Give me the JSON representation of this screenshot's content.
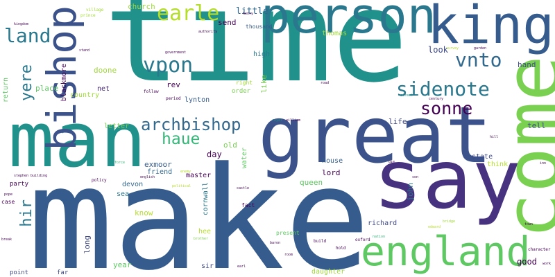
{
  "words": [
    {
      "text": "time",
      "color": "#21918c"
    },
    {
      "text": "make",
      "color": "#365c8d"
    },
    {
      "text": "great",
      "color": "#3b528b"
    },
    {
      "text": "man",
      "color": "#21918c"
    },
    {
      "text": "say",
      "color": "#46327e"
    },
    {
      "text": "come",
      "color": "#7ad151"
    },
    {
      "text": "person",
      "color": "#2a788e"
    },
    {
      "text": "king",
      "color": "#365c8d"
    },
    {
      "text": "bishop",
      "color": "#3b528b"
    },
    {
      "text": "england",
      "color": "#5ec962"
    },
    {
      "text": "earle",
      "color": "#b5de2b"
    },
    {
      "text": "land",
      "color": "#2a788e"
    },
    {
      "text": "vpon",
      "color": "#2a788e"
    },
    {
      "text": "vnto",
      "color": "#31688e"
    },
    {
      "text": "sidenote",
      "color": "#2a788e"
    },
    {
      "text": "sonne",
      "color": "#440154"
    },
    {
      "text": "archbishop",
      "color": "#31688e"
    },
    {
      "text": "haue",
      "color": "#35b779"
    },
    {
      "text": "y\u0003ere",
      "color": "#2a788e"
    },
    {
      "text": "hir",
      "color": "#2a788e"
    },
    {
      "text": "little",
      "color": "#31688e"
    },
    {
      "text": "send",
      "color": "#440154"
    },
    {
      "text": "thousand",
      "color": "#365c8d"
    },
    {
      "text": "church",
      "color": "#a0da39"
    },
    {
      "text": "thomas",
      "color": "#a0da39"
    },
    {
      "text": "high",
      "color": "#2a788e"
    },
    {
      "text": "look",
      "color": "#3e4989"
    },
    {
      "text": "hand",
      "color": "#3e4989"
    },
    {
      "text": "doone",
      "color": "#a0da39"
    },
    {
      "text": "rev",
      "color": "#440154"
    },
    {
      "text": "net",
      "color": "#482878"
    },
    {
      "text": "place",
      "color": "#5ec962"
    },
    {
      "text": "country",
      "color": "#a0da39"
    },
    {
      "text": "blackmore",
      "color": "#440154"
    },
    {
      "text": "return",
      "color": "#5ec962"
    },
    {
      "text": "lynton",
      "color": "#365c8d"
    },
    {
      "text": "like",
      "color": "#7ad151"
    },
    {
      "text": "right",
      "color": "#a0da39"
    },
    {
      "text": "order",
      "color": "#7ad151"
    },
    {
      "text": "life",
      "color": "#3e4989"
    },
    {
      "text": "tell",
      "color": "#3e4989"
    },
    {
      "text": "letter",
      "color": "#7ad151"
    },
    {
      "text": "old",
      "color": "#7ad151"
    },
    {
      "text": "day",
      "color": "#440154"
    },
    {
      "text": "master",
      "color": "#440154"
    },
    {
      "text": "exmoor",
      "color": "#365c8d"
    },
    {
      "text": "friend",
      "color": "#31688e"
    },
    {
      "text": "water",
      "color": "#5ec962"
    },
    {
      "text": "house",
      "color": "#355f8d"
    },
    {
      "text": "lord",
      "color": "#440154"
    },
    {
      "text": "state",
      "color": "#3e4989"
    },
    {
      "text": "think",
      "color": "#b5de2b"
    },
    {
      "text": "queen",
      "color": "#5ec962"
    },
    {
      "text": "devon",
      "color": "#31688e"
    },
    {
      "text": "sea",
      "color": "#2a788e"
    },
    {
      "text": "know",
      "color": "#b5de2b"
    },
    {
      "text": "party",
      "color": "#440154"
    },
    {
      "text": "case",
      "color": "#440154"
    },
    {
      "text": "fact",
      "color": "#440154"
    },
    {
      "text": "cornwall",
      "color": "#2a788e"
    },
    {
      "text": "john",
      "color": "#2a788e"
    },
    {
      "text": "richard",
      "color": "#3e4989"
    },
    {
      "text": "hee",
      "color": "#b5de2b"
    },
    {
      "text": "long",
      "color": "#3e4989"
    },
    {
      "text": "year",
      "color": "#5ec962"
    },
    {
      "text": "sir",
      "color": "#3e4989"
    },
    {
      "text": "present",
      "color": "#5ec962"
    },
    {
      "text": "daughter",
      "color": "#a0da39"
    },
    {
      "text": "good",
      "color": "#440154"
    },
    {
      "text": "point",
      "color": "#3e4989"
    },
    {
      "text": "far",
      "color": "#3e4989"
    },
    {
      "text": "prince",
      "color": "#a0da39"
    },
    {
      "text": "village",
      "color": "#a0da39"
    },
    {
      "text": "kingdom",
      "color": "#440154"
    },
    {
      "text": "henry",
      "color": "#440154"
    },
    {
      "text": "authority",
      "color": "#440154"
    },
    {
      "text": "government",
      "color": "#440154"
    },
    {
      "text": "stand",
      "color": "#440154"
    },
    {
      "text": "follow",
      "color": "#440154"
    },
    {
      "text": "period",
      "color": "#440154"
    },
    {
      "text": "garden",
      "color": "#440154"
    },
    {
      "text": "survey",
      "color": "#b5de2b"
    },
    {
      "text": "road",
      "color": "#440154"
    },
    {
      "text": "street",
      "color": "#21918c"
    },
    {
      "text": "century",
      "color": "#440154"
    },
    {
      "text": "royal",
      "color": "#21918c"
    },
    {
      "text": "william",
      "color": "#440154"
    },
    {
      "text": "force",
      "color": "#35b779"
    },
    {
      "text": "stephen",
      "color": "#440154"
    },
    {
      "text": "building",
      "color": "#440154"
    },
    {
      "text": "policy",
      "color": "#440154"
    },
    {
      "text": "english",
      "color": "#440154"
    },
    {
      "text": "political",
      "color": "#b5de2b"
    },
    {
      "text": "enemy",
      "color": "#b5de2b"
    },
    {
      "text": "castle",
      "color": "#440154"
    },
    {
      "text": "nation",
      "color": "#35b779"
    },
    {
      "text": "oxford",
      "color": "#440154"
    },
    {
      "text": "build",
      "color": "#440154"
    },
    {
      "text": "hold",
      "color": "#440154"
    },
    {
      "text": "baron",
      "color": "#440154"
    },
    {
      "text": "room",
      "color": "#440154"
    },
    {
      "text": "earl",
      "color": "#440154"
    },
    {
      "text": "brother",
      "color": "#7ad151"
    },
    {
      "text": "edward",
      "color": "#b5de2b"
    },
    {
      "text": "bridge",
      "color": "#a0da39"
    },
    {
      "text": "town",
      "color": "#440154"
    },
    {
      "text": "character",
      "color": "#440154"
    },
    {
      "text": "work",
      "color": "#440154"
    },
    {
      "text": "break",
      "color": "#440154"
    },
    {
      "text": "hill",
      "color": "#440154"
    },
    {
      "text": "inn",
      "color": "#440154"
    },
    {
      "text": "son",
      "color": "#440154"
    },
    {
      "text": "die",
      "color": "#440154"
    },
    {
      "text": "pope",
      "color": "#440154"
    }
  ]
}
